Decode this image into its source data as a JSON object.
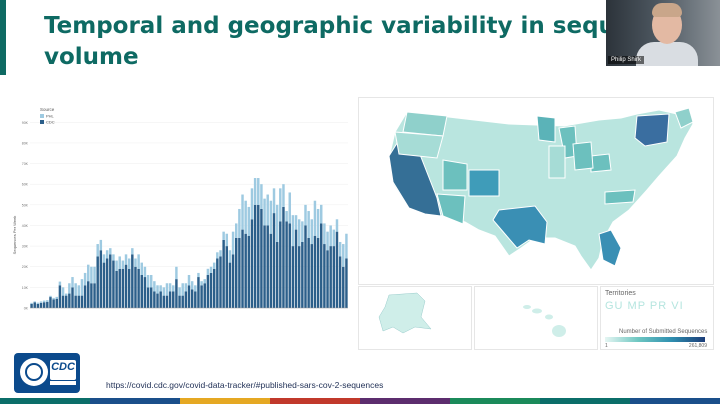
{
  "slide": {
    "title_line1": "Temporal and geographic variability in sequencing",
    "title_line2": "volume",
    "source_url": "https://covid.cdc.gov/covid-data-tracker/#published-sars-cov-2-sequences",
    "logo_text": "CDC"
  },
  "webcam": {
    "speaker_name": "Philip Shirk"
  },
  "colors": {
    "title": "#0e6a63",
    "cdc_series": "#2c5f8a",
    "pho_series": "#9ecae1",
    "footer": [
      "#0b6e69",
      "#1a4f8a",
      "#e5a823",
      "#c1392b",
      "#5c2d6e",
      "#1b8a5a",
      "#0b6e69",
      "#1a4f8a"
    ]
  },
  "chart_data": {
    "type": "bar",
    "stacked": true,
    "ylabel": "Sequences Per Week",
    "legend_title": "Source",
    "legend_placement": "top-left",
    "y_ticks": [
      "0K",
      "10K",
      "20K",
      "30K",
      "40K",
      "50K",
      "60K",
      "70K",
      "80K",
      "90K"
    ],
    "ylim": [
      0,
      95000
    ],
    "series": [
      {
        "name": "PHL",
        "values": [
          500,
          400,
          600,
          700,
          800,
          800,
          600,
          700,
          900,
          1800,
          4000,
          1000,
          5000,
          5000,
          6000,
          5000,
          8000,
          6000,
          8000,
          8000,
          8000,
          6000,
          5000,
          4000,
          4000,
          3000,
          3000,
          5000,
          6000,
          4000,
          5000,
          5000,
          3000,
          4000,
          7000,
          6000,
          5000,
          6000,
          6000,
          5000,
          4000,
          3000,
          4000,
          6000,
          4000,
          3000,
          6000,
          4000,
          6000,
          4000,
          5000,
          4000,
          3000,
          2000,
          2000,
          2000,
          3000,
          3000,
          3000,
          3000,
          3000,
          4000,
          6000,
          6000,
          11000,
          7000,
          14000,
          17000,
          16000,
          14000,
          15000,
          13000,
          13000,
          12000,
          13000,
          15000,
          16000,
          12000,
          18000,
          16000,
          11000,
          5000,
          15000,
          15000,
          7000,
          13000,
          10000,
          10000,
          13000,
          12000,
          17000,
          14000,
          9000,
          10000,
          9000,
          10000,
          8000,
          6000,
          7000,
          11000,
          12000
        ]
      },
      {
        "name": "CDC",
        "values": [
          2000,
          2800,
          2000,
          2500,
          2800,
          3000,
          5300,
          4200,
          4500,
          11000,
          6000,
          6000,
          7000,
          10000,
          6000,
          6000,
          6000,
          11000,
          13000,
          12000,
          12000,
          25000,
          28000,
          22000,
          24000,
          26000,
          23000,
          18000,
          19000,
          19000,
          21000,
          19000,
          26000,
          20000,
          19000,
          16000,
          15000,
          10000,
          10000,
          8000,
          7000,
          8000,
          6000,
          6000,
          8000,
          8000,
          14000,
          6000,
          6000,
          8000,
          11000,
          9000,
          8000,
          15000,
          11000,
          12000,
          16000,
          17000,
          19000,
          24000,
          25000,
          33000,
          30000,
          22000,
          26000,
          34000,
          34000,
          38000,
          36000,
          35000,
          43000,
          50000,
          50000,
          48000,
          40000,
          40000,
          36000,
          46000,
          32000,
          42000,
          49000,
          42000,
          41000,
          30000,
          38000,
          30000,
          32000,
          40000,
          34000,
          31000,
          35000,
          34000,
          41000,
          31000,
          28000,
          30000,
          30000,
          37000,
          25000,
          20000,
          24000
        ]
      }
    ],
    "x_count": 101
  },
  "map": {
    "territories_label": "Territories",
    "territories": "GU MP PR VI",
    "legend_title": "Number of Submitted Sequences",
    "legend_min": "1",
    "legend_max": "261,809"
  }
}
